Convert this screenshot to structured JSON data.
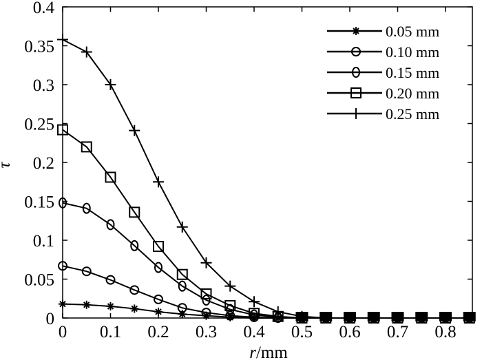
{
  "chart_data": {
    "type": "line",
    "title": "",
    "xlabel": "r/mm",
    "ylabel": "τ",
    "xlim": [
      0,
      0.86
    ],
    "ylim": [
      0,
      0.4
    ],
    "grid": false,
    "legend_position": "upper right",
    "x_ticks": [
      "0",
      "0.1",
      "0.2",
      "0.3",
      "0.4",
      "0.5",
      "0.6",
      "0.7",
      "0.8"
    ],
    "y_ticks": [
      "0",
      "0.05",
      "0.1",
      "0.15",
      "0.2",
      "0.25",
      "0.3",
      "0.35",
      "0.4"
    ],
    "x": [
      0,
      0.05,
      0.1,
      0.15,
      0.2,
      0.25,
      0.3,
      0.35,
      0.4,
      0.45,
      0.5,
      0.55,
      0.6,
      0.65,
      0.7,
      0.75,
      0.8,
      0.85
    ],
    "series": [
      {
        "name": "0.05 mm",
        "marker": "star",
        "values": [
          0.018,
          0.017,
          0.015,
          0.012,
          0.008,
          0.005,
          0.003,
          0.001,
          0.0,
          0.0,
          0.0,
          0.0,
          0.0,
          0.0,
          0.0,
          0.0,
          0.0,
          0.0
        ]
      },
      {
        "name": "0.10 mm",
        "marker": "circle",
        "values": [
          0.067,
          0.06,
          0.049,
          0.036,
          0.024,
          0.013,
          0.007,
          0.003,
          0.001,
          0.0,
          0.0,
          0.0,
          0.0,
          0.0,
          0.0,
          0.0,
          0.0,
          0.0
        ]
      },
      {
        "name": "0.15 mm",
        "marker": "diamond",
        "values": [
          0.148,
          0.141,
          0.12,
          0.093,
          0.065,
          0.041,
          0.023,
          0.011,
          0.004,
          0.001,
          0.0,
          0.0,
          0.0,
          0.0,
          0.0,
          0.0,
          0.0,
          0.0
        ]
      },
      {
        "name": "0.20 mm",
        "marker": "square",
        "values": [
          0.242,
          0.22,
          0.181,
          0.136,
          0.092,
          0.056,
          0.031,
          0.016,
          0.006,
          0.002,
          0.0,
          0.0,
          0.0,
          0.0,
          0.0,
          0.0,
          0.0,
          0.0
        ]
      },
      {
        "name": "0.25 mm",
        "marker": "plus",
        "values": [
          0.358,
          0.342,
          0.3,
          0.241,
          0.175,
          0.117,
          0.071,
          0.041,
          0.021,
          0.008,
          0.002,
          0.0,
          0.0,
          0.0,
          0.0,
          0.0,
          0.0,
          0.0
        ]
      }
    ]
  },
  "legend": {
    "items": [
      "0.05 mm",
      "0.10 mm",
      "0.15 mm",
      "0.20 mm",
      "0.25 mm"
    ]
  },
  "axes": {
    "xlabel_italic": "r",
    "xlabel_unit": "/mm",
    "ylabel": "τ"
  },
  "colors": {
    "line": "#000000",
    "background": "#ffffff"
  }
}
